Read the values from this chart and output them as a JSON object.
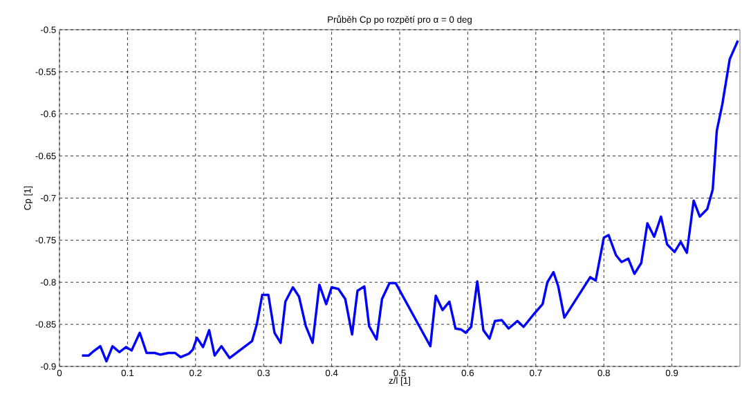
{
  "chart_data": {
    "type": "line",
    "title": "Průběh Cp po rozpětí pro α = 0 deg",
    "xlabel": "z/l [1]",
    "ylabel": "Cp [1]",
    "xlim": [
      0,
      1
    ],
    "ylim": [
      -0.9,
      -0.5
    ],
    "xticks": [
      0,
      0.1,
      0.2,
      0.3,
      0.4,
      0.5,
      0.6,
      0.7,
      0.8,
      0.9
    ],
    "yticks": [
      -0.9,
      -0.85,
      -0.8,
      -0.75,
      -0.7,
      -0.65,
      -0.6,
      -0.55,
      -0.5
    ],
    "grid": true,
    "marker": "none",
    "line_style": "solid",
    "series": [
      {
        "color": "#0000ff",
        "x": [
          0.033,
          0.043,
          0.05,
          0.06,
          0.069,
          0.078,
          0.088,
          0.098,
          0.106,
          0.118,
          0.128,
          0.14,
          0.148,
          0.16,
          0.17,
          0.178,
          0.19,
          0.196,
          0.202,
          0.211,
          0.22,
          0.228,
          0.238,
          0.25,
          0.283,
          0.29,
          0.298,
          0.307,
          0.316,
          0.325,
          0.332,
          0.343,
          0.352,
          0.362,
          0.372,
          0.382,
          0.392,
          0.4,
          0.41,
          0.42,
          0.43,
          0.438,
          0.448,
          0.455,
          0.466,
          0.474,
          0.485,
          0.494,
          0.545,
          0.553,
          0.563,
          0.573,
          0.582,
          0.59,
          0.597,
          0.605,
          0.614,
          0.623,
          0.632,
          0.64,
          0.65,
          0.66,
          0.673,
          0.682,
          0.697,
          0.71,
          0.717,
          0.726,
          0.733,
          0.742,
          0.78,
          0.788,
          0.8,
          0.807,
          0.818,
          0.826,
          0.836,
          0.845,
          0.855,
          0.864,
          0.874,
          0.884,
          0.893,
          0.904,
          0.913,
          0.922,
          0.932,
          0.941,
          0.952,
          0.96,
          0.966,
          0.974,
          0.985,
          0.997
        ],
        "values": [
          -0.887,
          -0.887,
          -0.882,
          -0.876,
          -0.894,
          -0.876,
          -0.883,
          -0.877,
          -0.881,
          -0.86,
          -0.884,
          -0.884,
          -0.886,
          -0.884,
          -0.884,
          -0.889,
          -0.885,
          -0.88,
          -0.866,
          -0.877,
          -0.857,
          -0.887,
          -0.876,
          -0.89,
          -0.87,
          -0.85,
          -0.815,
          -0.815,
          -0.86,
          -0.872,
          -0.823,
          -0.806,
          -0.817,
          -0.852,
          -0.872,
          -0.803,
          -0.826,
          -0.806,
          -0.808,
          -0.82,
          -0.862,
          -0.81,
          -0.805,
          -0.852,
          -0.868,
          -0.82,
          -0.801,
          -0.801,
          -0.876,
          -0.816,
          -0.833,
          -0.823,
          -0.855,
          -0.856,
          -0.86,
          -0.853,
          -0.799,
          -0.857,
          -0.867,
          -0.846,
          -0.845,
          -0.855,
          -0.846,
          -0.853,
          -0.838,
          -0.826,
          -0.8,
          -0.788,
          -0.805,
          -0.842,
          -0.794,
          -0.798,
          -0.747,
          -0.744,
          -0.768,
          -0.776,
          -0.772,
          -0.79,
          -0.777,
          -0.73,
          -0.746,
          -0.722,
          -0.755,
          -0.764,
          -0.752,
          -0.765,
          -0.703,
          -0.722,
          -0.713,
          -0.69,
          -0.62,
          -0.589,
          -0.535,
          -0.513
        ]
      }
    ]
  }
}
